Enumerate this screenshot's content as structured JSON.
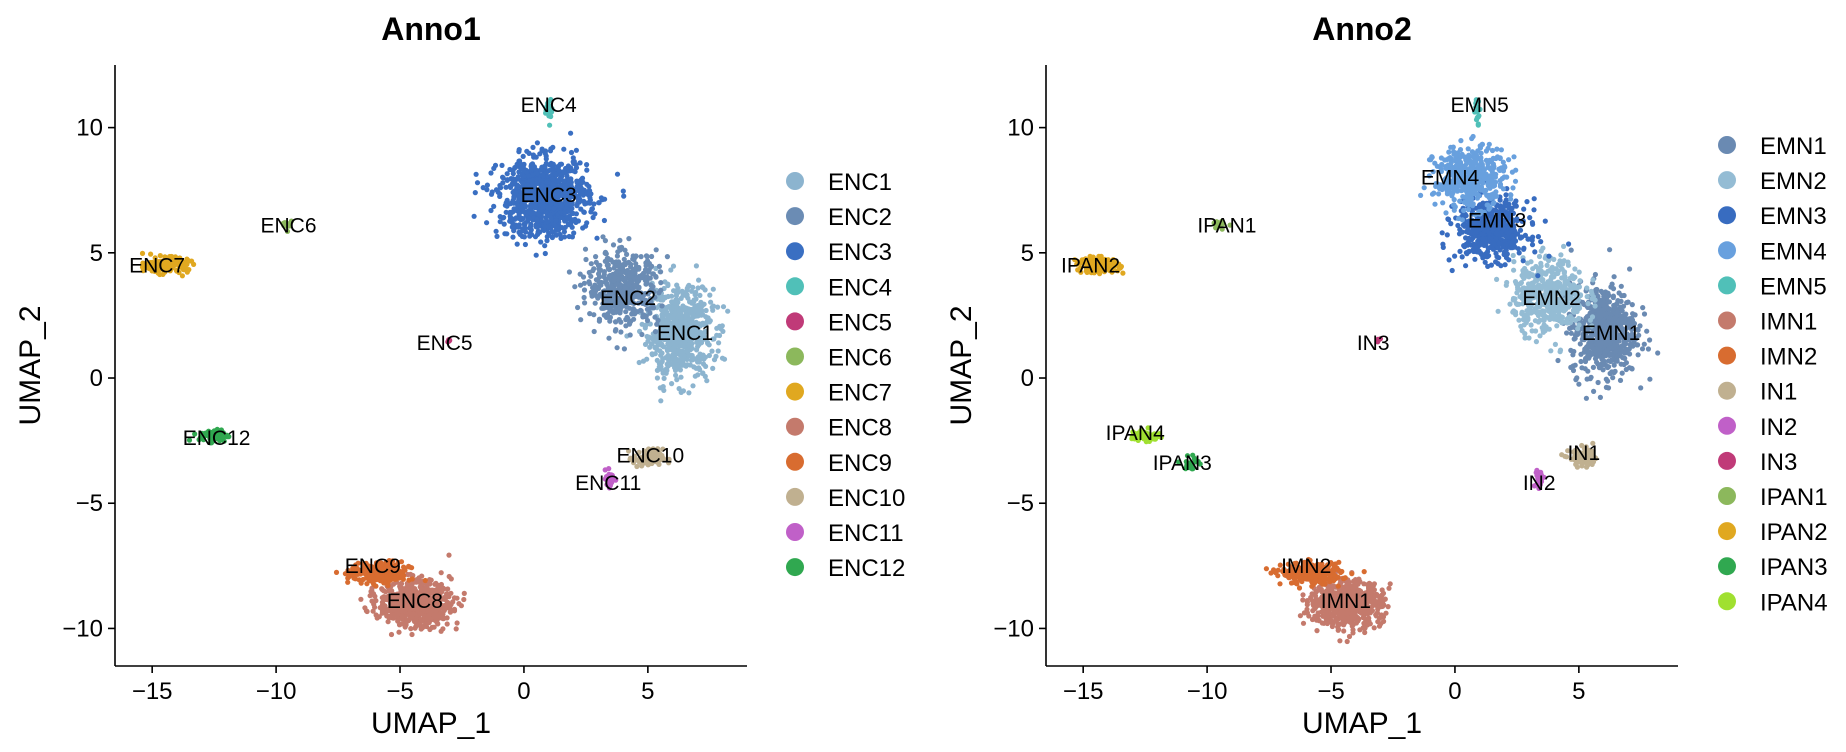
{
  "chart_data": [
    {
      "type": "scatter",
      "title": "Anno1",
      "xlabel": "UMAP_1",
      "ylabel": "UMAP_2",
      "xlim": [
        -16.5,
        9
      ],
      "ylim": [
        -11.5,
        12.5
      ],
      "xticks": [
        -15,
        -10,
        -5,
        0,
        5
      ],
      "yticks": [
        -10,
        -5,
        0,
        5,
        10
      ],
      "xtick_labels": [
        "−15",
        "−10",
        "−5",
        "0",
        "5"
      ],
      "ytick_labels": [
        "−10",
        "−5",
        "0",
        "5",
        "10"
      ],
      "grid": false,
      "legend_position": "right",
      "legend": [
        {
          "name": "ENC1",
          "color": "#8cb4cf"
        },
        {
          "name": "ENC2",
          "color": "#6b8cb4"
        },
        {
          "name": "ENC3",
          "color": "#3a6fc2"
        },
        {
          "name": "ENC4",
          "color": "#50c0b8"
        },
        {
          "name": "ENC5",
          "color": "#c03a78"
        },
        {
          "name": "ENC6",
          "color": "#8cb85c"
        },
        {
          "name": "ENC7",
          "color": "#e0a820"
        },
        {
          "name": "ENC8",
          "color": "#c47a6c"
        },
        {
          "name": "ENC9",
          "color": "#d86c30"
        },
        {
          "name": "ENC10",
          "color": "#c0b090"
        },
        {
          "name": "ENC11",
          "color": "#c060c8"
        },
        {
          "name": "ENC12",
          "color": "#30a850"
        }
      ],
      "clusters": [
        {
          "name": "ENC1",
          "color": "#8cb4cf",
          "x": 6.3,
          "y": 1.8,
          "sx": 1.1,
          "sy": 1.5,
          "n": 650
        },
        {
          "name": "ENC2",
          "color": "#6b8cb4",
          "x": 4.0,
          "y": 3.6,
          "sx": 1.2,
          "sy": 1.2,
          "n": 480
        },
        {
          "name": "ENC3",
          "color": "#3a6fc2",
          "x": 0.8,
          "y": 7.2,
          "sx": 1.5,
          "sy": 1.3,
          "n": 950
        },
        {
          "name": "ENC4",
          "color": "#50c0b8",
          "x": 1.0,
          "y": 10.7,
          "sx": 0.1,
          "sy": 0.4,
          "n": 20
        },
        {
          "name": "ENC5",
          "color": "#c03a78",
          "x": -3.0,
          "y": 1.5,
          "sx": 0.08,
          "sy": 0.08,
          "n": 5
        },
        {
          "name": "ENC6",
          "color": "#8cb85c",
          "x": -9.5,
          "y": 6.1,
          "sx": 0.2,
          "sy": 0.15,
          "n": 20
        },
        {
          "name": "ENC7",
          "color": "#e0a820",
          "x": -14.4,
          "y": 4.5,
          "sx": 0.7,
          "sy": 0.25,
          "n": 150
        },
        {
          "name": "ENC8",
          "color": "#c47a6c",
          "x": -4.4,
          "y": -9.0,
          "sx": 1.2,
          "sy": 0.75,
          "n": 700
        },
        {
          "name": "ENC9",
          "color": "#d86c30",
          "x": -5.8,
          "y": -7.8,
          "sx": 1.0,
          "sy": 0.35,
          "n": 260
        },
        {
          "name": "ENC10",
          "color": "#c0b090",
          "x": 5.0,
          "y": -3.2,
          "sx": 0.5,
          "sy": 0.3,
          "n": 100
        },
        {
          "name": "ENC11",
          "color": "#c060c8",
          "x": 3.5,
          "y": -4.0,
          "sx": 0.15,
          "sy": 0.3,
          "n": 30
        },
        {
          "name": "ENC12",
          "color": "#30a850",
          "x": -12.5,
          "y": -2.3,
          "sx": 0.5,
          "sy": 0.2,
          "n": 70
        }
      ],
      "cluster_labels": [
        {
          "text": "ENC1",
          "x": 6.5,
          "y": 1.8
        },
        {
          "text": "ENC2",
          "x": 4.2,
          "y": 3.2
        },
        {
          "text": "ENC3",
          "x": 1.0,
          "y": 7.3
        },
        {
          "text": "ENC4",
          "x": 1.0,
          "y": 10.9
        },
        {
          "text": "ENC5",
          "x": -3.2,
          "y": 1.4
        },
        {
          "text": "ENC6",
          "x": -9.5,
          "y": 6.1
        },
        {
          "text": "ENC7",
          "x": -14.8,
          "y": 4.5
        },
        {
          "text": "ENC8",
          "x": -4.4,
          "y": -8.9
        },
        {
          "text": "ENC9",
          "x": -6.1,
          "y": -7.5
        },
        {
          "text": "ENC10",
          "x": 5.1,
          "y": -3.1
        },
        {
          "text": "ENC11",
          "x": 3.4,
          "y": -4.2
        },
        {
          "text": "ENC12",
          "x": -12.4,
          "y": -2.4
        }
      ]
    },
    {
      "type": "scatter",
      "title": "Anno2",
      "xlabel": "UMAP_1",
      "ylabel": "UMAP_2",
      "xlim": [
        -16.5,
        9
      ],
      "ylim": [
        -11.5,
        12.5
      ],
      "xticks": [
        -15,
        -10,
        -5,
        0,
        5
      ],
      "yticks": [
        -10,
        -5,
        0,
        5,
        10
      ],
      "xtick_labels": [
        "−15",
        "−10",
        "−5",
        "0",
        "5"
      ],
      "ytick_labels": [
        "−10",
        "−5",
        "0",
        "5",
        "10"
      ],
      "grid": false,
      "legend_position": "right",
      "legend": [
        {
          "name": "EMN1",
          "color": "#6a8ab2"
        },
        {
          "name": "EMN2",
          "color": "#94bcd4"
        },
        {
          "name": "EMN3",
          "color": "#386cc0"
        },
        {
          "name": "EMN4",
          "color": "#68a0de"
        },
        {
          "name": "EMN5",
          "color": "#50c0b8"
        },
        {
          "name": "IMN1",
          "color": "#c47a6c"
        },
        {
          "name": "IMN2",
          "color": "#d86c30"
        },
        {
          "name": "IN1",
          "color": "#c0b090"
        },
        {
          "name": "IN2",
          "color": "#c060c8"
        },
        {
          "name": "IN3",
          "color": "#c03a78"
        },
        {
          "name": "IPAN1",
          "color": "#8cb85c"
        },
        {
          "name": "IPAN2",
          "color": "#e0a820"
        },
        {
          "name": "IPAN3",
          "color": "#30a850"
        },
        {
          "name": "IPAN4",
          "color": "#a0e030"
        }
      ],
      "clusters": [
        {
          "name": "EMN1",
          "color": "#6a8ab2",
          "x": 6.0,
          "y": 1.9,
          "sx": 1.1,
          "sy": 1.5,
          "n": 650
        },
        {
          "name": "EMN2",
          "color": "#94bcd4",
          "x": 3.8,
          "y": 3.3,
          "sx": 1.2,
          "sy": 1.2,
          "n": 480
        },
        {
          "name": "EMN3",
          "color": "#386cc0",
          "x": 1.5,
          "y": 5.9,
          "sx": 1.2,
          "sy": 1.0,
          "n": 520
        },
        {
          "name": "EMN4",
          "color": "#68a0de",
          "x": 0.6,
          "y": 8.0,
          "sx": 1.2,
          "sy": 1.0,
          "n": 430
        },
        {
          "name": "EMN5",
          "color": "#50c0b8",
          "x": 0.9,
          "y": 10.7,
          "sx": 0.1,
          "sy": 0.4,
          "n": 20
        },
        {
          "name": "IMN1",
          "color": "#c47a6c",
          "x": -4.4,
          "y": -9.0,
          "sx": 1.2,
          "sy": 0.75,
          "n": 700
        },
        {
          "name": "IMN2",
          "color": "#d86c30",
          "x": -5.8,
          "y": -7.8,
          "sx": 1.0,
          "sy": 0.35,
          "n": 260
        },
        {
          "name": "IN1",
          "color": "#c0b090",
          "x": 5.2,
          "y": -3.2,
          "sx": 0.5,
          "sy": 0.3,
          "n": 100
        },
        {
          "name": "IN2",
          "color": "#c060c8",
          "x": 3.4,
          "y": -4.0,
          "sx": 0.15,
          "sy": 0.3,
          "n": 30
        },
        {
          "name": "IN3",
          "color": "#c03a78",
          "x": -3.1,
          "y": 1.5,
          "sx": 0.08,
          "sy": 0.08,
          "n": 5
        },
        {
          "name": "IPAN1",
          "color": "#8cb85c",
          "x": -9.5,
          "y": 6.1,
          "sx": 0.2,
          "sy": 0.15,
          "n": 20
        },
        {
          "name": "IPAN2",
          "color": "#e0a820",
          "x": -14.4,
          "y": 4.5,
          "sx": 0.7,
          "sy": 0.25,
          "n": 150
        },
        {
          "name": "IPAN3",
          "color": "#30a850",
          "x": -10.6,
          "y": -3.4,
          "sx": 0.3,
          "sy": 0.3,
          "n": 25
        },
        {
          "name": "IPAN4",
          "color": "#a0e030",
          "x": -12.5,
          "y": -2.3,
          "sx": 0.5,
          "sy": 0.2,
          "n": 60
        }
      ],
      "cluster_labels": [
        {
          "text": "EMN1",
          "x": 6.3,
          "y": 1.8
        },
        {
          "text": "EMN2",
          "x": 3.9,
          "y": 3.2
        },
        {
          "text": "EMN3",
          "x": 1.7,
          "y": 6.3
        },
        {
          "text": "EMN4",
          "x": -0.2,
          "y": 8.0
        },
        {
          "text": "EMN5",
          "x": 1.0,
          "y": 10.9
        },
        {
          "text": "IMN1",
          "x": -4.4,
          "y": -8.9
        },
        {
          "text": "IMN2",
          "x": -6.0,
          "y": -7.5
        },
        {
          "text": "IN1",
          "x": 5.2,
          "y": -3.0
        },
        {
          "text": "IN2",
          "x": 3.4,
          "y": -4.2
        },
        {
          "text": "IN3",
          "x": -3.3,
          "y": 1.4
        },
        {
          "text": "IPAN1",
          "x": -9.2,
          "y": 6.1
        },
        {
          "text": "IPAN2",
          "x": -14.7,
          "y": 4.5
        },
        {
          "text": "IPAN3",
          "x": -11.0,
          "y": -3.4
        },
        {
          "text": "IPAN4",
          "x": -12.9,
          "y": -2.2
        }
      ]
    }
  ]
}
